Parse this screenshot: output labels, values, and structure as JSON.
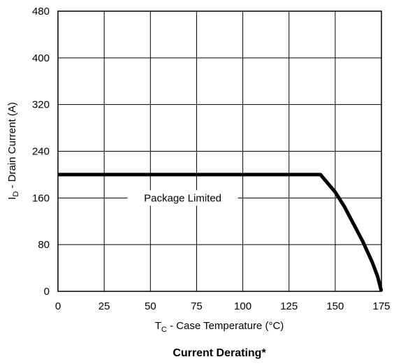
{
  "chart_data": {
    "type": "line",
    "title": "Current Derating*",
    "xlabel_main": "T",
    "xlabel_sub": "C",
    "xlabel_rest": " - Case Temperature (°C)",
    "ylabel_main": "I",
    "ylabel_sub": "D",
    "ylabel_rest": " - Drain Current (A)",
    "xlim": [
      0,
      175
    ],
    "ylim": [
      0,
      480
    ],
    "xticks": [
      0,
      25,
      50,
      75,
      100,
      125,
      150,
      175
    ],
    "yticks": [
      0,
      80,
      160,
      240,
      320,
      400,
      480
    ],
    "grid": true,
    "annotation": "Package Limited",
    "series": [
      {
        "x": [
          0,
          142,
          150,
          155,
          160,
          165,
          170,
          173,
          175
        ],
        "y": [
          200,
          200,
          170,
          145,
          115,
          85,
          50,
          25,
          0
        ]
      }
    ]
  }
}
